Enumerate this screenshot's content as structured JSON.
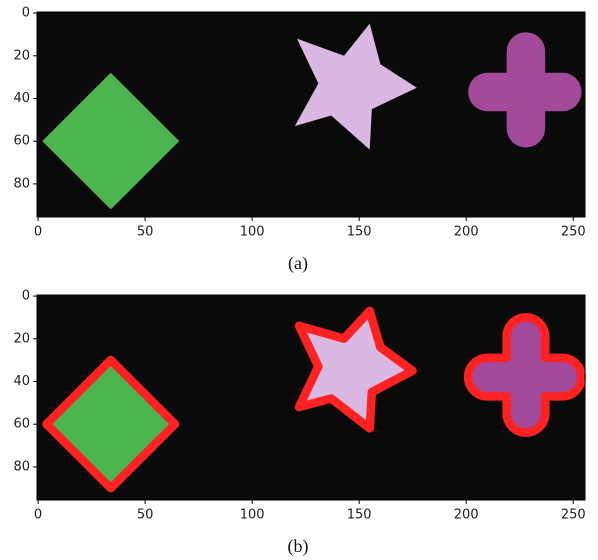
{
  "chart_data": [
    {
      "type": "image",
      "caption": "(a)",
      "xlim": [
        -0.5,
        255.5
      ],
      "ylim": [
        95.5,
        -0.5
      ],
      "xticks": [
        0,
        50,
        100,
        150,
        200,
        250
      ],
      "yticks": [
        0,
        20,
        40,
        60,
        80
      ]
    },
    {
      "type": "image",
      "caption": "(b)",
      "xlim": [
        -0.5,
        255.5
      ],
      "ylim": [
        95.5,
        -0.5
      ],
      "xticks": [
        0,
        50,
        100,
        150,
        200,
        250
      ],
      "yticks": [
        0,
        20,
        40,
        60,
        80
      ]
    }
  ]
}
